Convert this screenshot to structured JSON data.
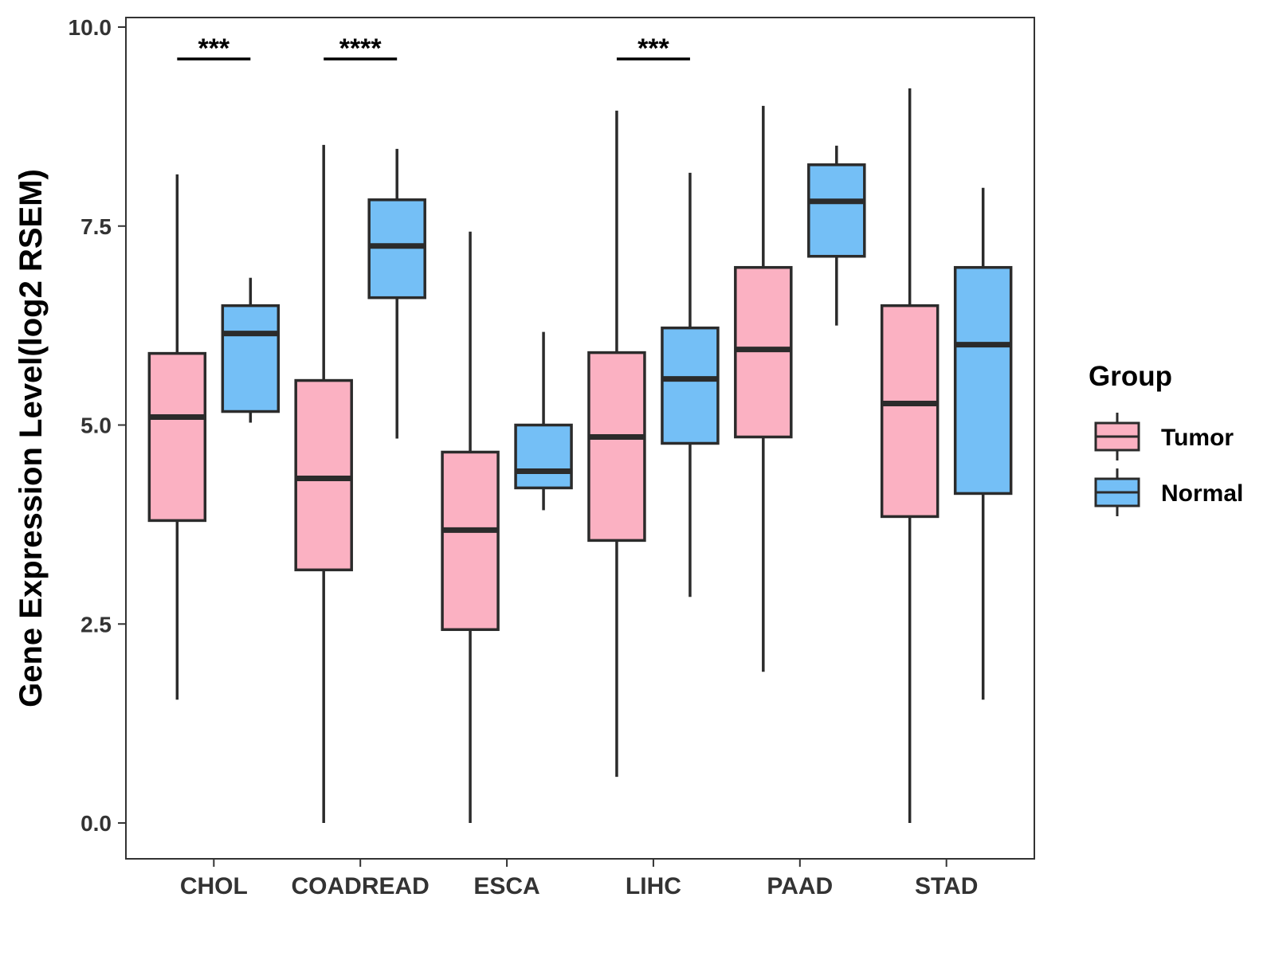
{
  "chart_data": {
    "type": "boxplot",
    "title": "",
    "xlabel": "",
    "ylabel": "Gene Expression Level(log2 RSEM)",
    "ylim": [
      -0.45,
      10.12
    ],
    "yticks": [
      "0.0",
      "2.5",
      "5.0",
      "7.5",
      "10.0"
    ],
    "categories": [
      "CHOL",
      "COADREAD",
      "ESCA",
      "LIHC",
      "PAAD",
      "STAD"
    ],
    "series": [
      {
        "name": "Tumor",
        "color": "#FBB1C2",
        "boxes": [
          {
            "min": 1.55,
            "q1": 3.8,
            "median": 5.1,
            "q3": 5.9,
            "max": 8.15
          },
          {
            "min": 0.0,
            "q1": 3.18,
            "median": 4.33,
            "q3": 5.56,
            "max": 8.52
          },
          {
            "min": 0.0,
            "q1": 2.43,
            "median": 3.68,
            "q3": 4.66,
            "max": 7.43
          },
          {
            "min": 0.58,
            "q1": 3.55,
            "median": 4.85,
            "q3": 5.91,
            "max": 8.95
          },
          {
            "min": 1.9,
            "q1": 4.85,
            "median": 5.95,
            "q3": 6.98,
            "max": 9.01
          },
          {
            "min": 0.0,
            "q1": 3.85,
            "median": 5.27,
            "q3": 6.5,
            "max": 9.23
          }
        ]
      },
      {
        "name": "Normal",
        "color": "#74BFF6",
        "boxes": [
          {
            "min": 5.03,
            "q1": 5.17,
            "median": 6.15,
            "q3": 6.5,
            "max": 6.85
          },
          {
            "min": 4.83,
            "q1": 6.6,
            "median": 7.25,
            "q3": 7.83,
            "max": 8.47
          },
          {
            "min": 3.93,
            "q1": 4.21,
            "median": 4.42,
            "q3": 5.0,
            "max": 6.17
          },
          {
            "min": 2.84,
            "q1": 4.77,
            "median": 5.58,
            "q3": 6.22,
            "max": 8.17
          },
          {
            "min": 6.25,
            "q1": 7.12,
            "median": 7.81,
            "q3": 8.27,
            "max": 8.51
          },
          {
            "min": 1.55,
            "q1": 4.14,
            "median": 6.01,
            "q3": 6.98,
            "max": 7.98
          }
        ]
      }
    ],
    "significance": [
      {
        "category": "CHOL",
        "label": "***"
      },
      {
        "category": "COADREAD",
        "label": "****"
      },
      {
        "category": "LIHC",
        "label": "***"
      }
    ],
    "significance_y": 9.6,
    "legend": {
      "title": "Group",
      "position": "right",
      "entries": [
        "Tumor",
        "Normal"
      ]
    },
    "grid": false
  }
}
